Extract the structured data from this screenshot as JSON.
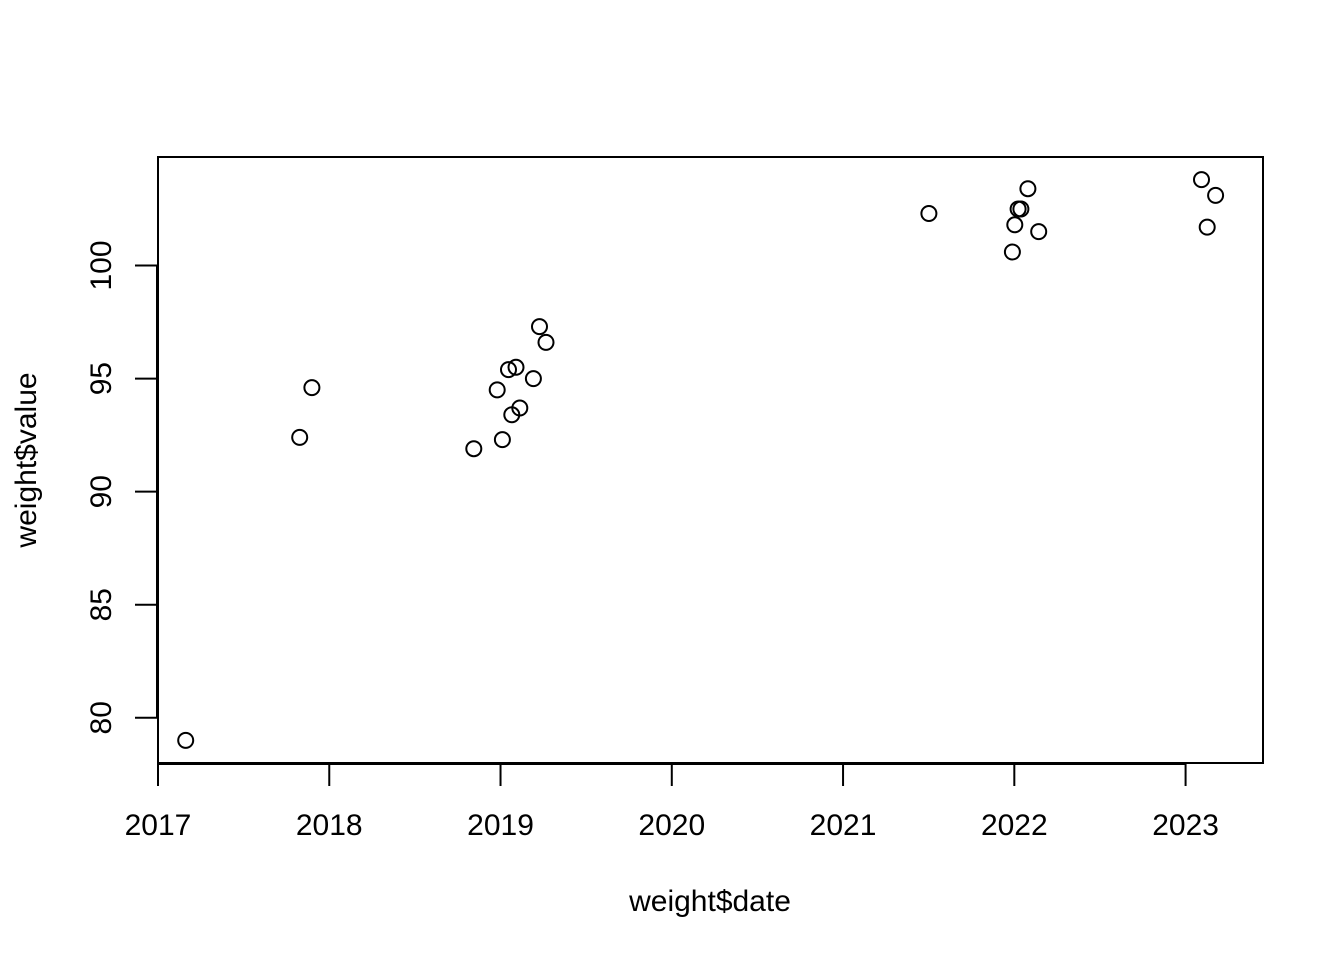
{
  "chart_data": {
    "type": "scatter",
    "title": "",
    "xlabel": "weight$date",
    "ylabel": "weight$value",
    "xlim": [
      "2017-01-01",
      "2023-06-15"
    ],
    "ylim": [
      78,
      104.8
    ],
    "x_ticks": [
      "2017",
      "2018",
      "2019",
      "2020",
      "2021",
      "2022",
      "2023"
    ],
    "y_ticks": [
      "80",
      "85",
      "90",
      "95",
      "100"
    ],
    "grid": false,
    "legend": "none",
    "point_style": "open-circle",
    "color": "#000000",
    "points": [
      {
        "x": "2017-03-01",
        "y": 79.0
      },
      {
        "x": "2017-10-30",
        "y": 92.4
      },
      {
        "x": "2017-11-25",
        "y": 94.6
      },
      {
        "x": "2018-11-05",
        "y": 91.9
      },
      {
        "x": "2018-12-25",
        "y": 94.5
      },
      {
        "x": "2019-01-05",
        "y": 92.3
      },
      {
        "x": "2019-01-18",
        "y": 95.4
      },
      {
        "x": "2019-01-25",
        "y": 93.4
      },
      {
        "x": "2019-02-03",
        "y": 95.5
      },
      {
        "x": "2019-02-11",
        "y": 93.7
      },
      {
        "x": "2019-03-12",
        "y": 95.0
      },
      {
        "x": "2019-03-25",
        "y": 97.3
      },
      {
        "x": "2019-04-08",
        "y": 96.6
      },
      {
        "x": "2021-07-03",
        "y": 102.3
      },
      {
        "x": "2021-12-28",
        "y": 100.6
      },
      {
        "x": "2022-01-02",
        "y": 101.8
      },
      {
        "x": "2022-01-09",
        "y": 102.5
      },
      {
        "x": "2022-01-15",
        "y": 102.5
      },
      {
        "x": "2022-01-30",
        "y": 103.4
      },
      {
        "x": "2022-02-22",
        "y": 101.5
      },
      {
        "x": "2023-02-04",
        "y": 103.8
      },
      {
        "x": "2023-02-16",
        "y": 101.7
      },
      {
        "x": "2023-03-06",
        "y": 103.1
      }
    ]
  }
}
